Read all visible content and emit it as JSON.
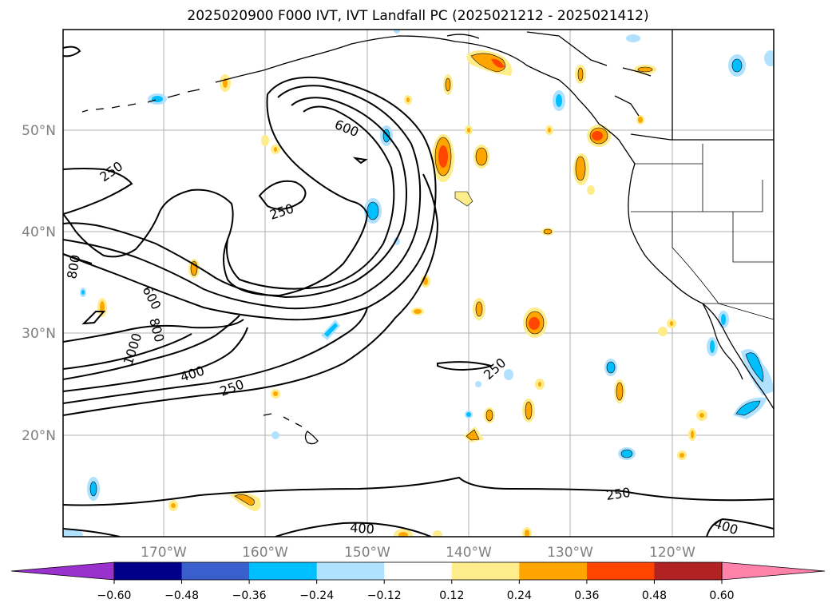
{
  "title": "2025020900 F000 IVT, IVT Landfall PC (2025021212 - 2025021412)",
  "map": {
    "lat_labels": [
      "50°N",
      "40°N",
      "30°N",
      "20°N"
    ],
    "lon_labels": [
      "170°W",
      "160°W",
      "150°W",
      "140°W",
      "130°W",
      "120°W"
    ],
    "contour_labels": [
      "250",
      "600",
      "250",
      "800",
      "600",
      "800",
      "1000",
      "400",
      "250",
      "250",
      "250",
      "400",
      "400"
    ]
  },
  "colorbar": {
    "ticks": [
      "−0.60",
      "−0.48",
      "−0.36",
      "−0.24",
      "−0.12",
      "0.12",
      "0.24",
      "0.36",
      "0.48",
      "0.60"
    ],
    "colors": [
      "#9932cc",
      "#00008b",
      "#3a5fcd",
      "#00bfff",
      "#b0e2ff",
      "#ffffff",
      "#ffec8b",
      "#ffa500",
      "#ff4500",
      "#b22222",
      "#ff82ab"
    ]
  },
  "colors": {
    "axis": "#000000",
    "grid": "#b0b0b0",
    "tick_text": "#808080"
  }
}
